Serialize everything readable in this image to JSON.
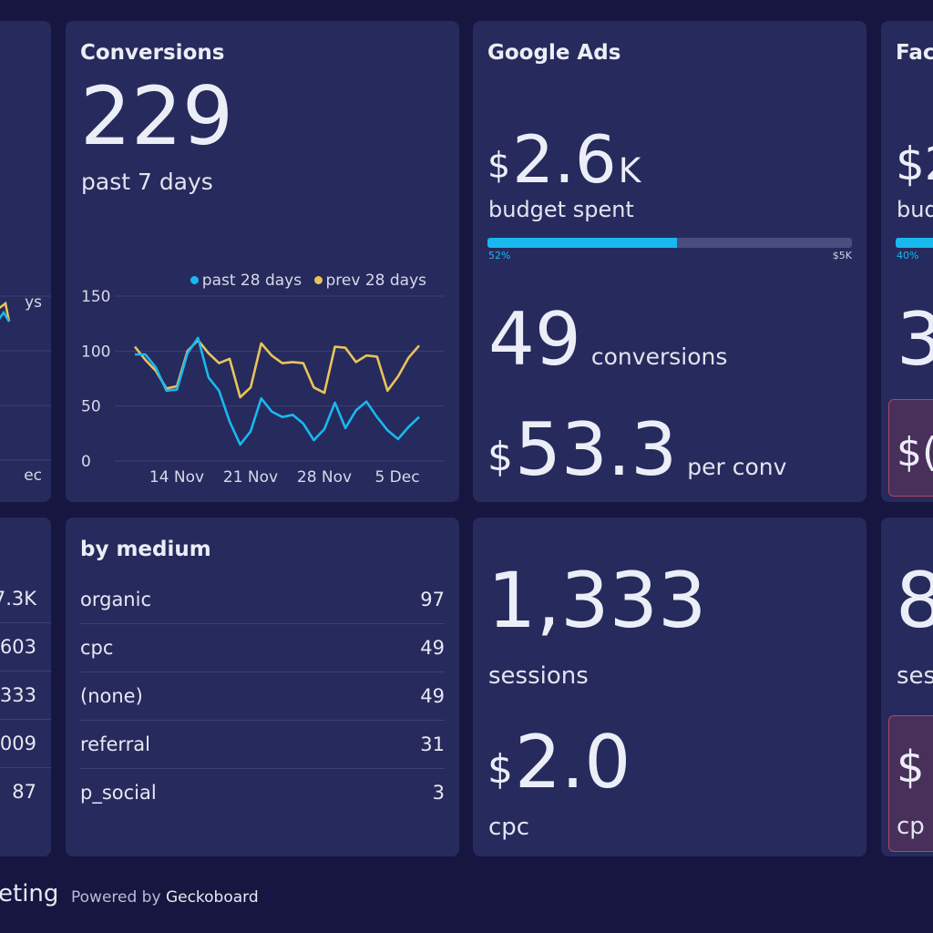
{
  "colors": {
    "background": "#171640",
    "card": "#272a5c",
    "blue": "#19b8f0",
    "yellow": "#e8c45b",
    "text": "#eceef7",
    "warning_border": "#b2475d"
  },
  "left_top": {
    "legend_partial": "ys",
    "tick_label_partial": "ec"
  },
  "conversions": {
    "title": "Conversions",
    "value": "229",
    "caption": "past 7 days",
    "legend": {
      "series_a": "past 28 days",
      "series_b": "prev 28 days"
    },
    "chart_data": {
      "type": "line",
      "title": "",
      "xlabel": "",
      "ylabel": "",
      "ylim": [
        0,
        150
      ],
      "yticks": [
        "150",
        "100",
        "50",
        "0"
      ],
      "x_tick_labels": [
        "14 Nov",
        "21 Nov",
        "28 Nov",
        "5 Dec"
      ],
      "legend_position": "top-right",
      "grid": true,
      "series": [
        {
          "name": "past 28 days",
          "color": "#19b8f0",
          "values": [
            97,
            97,
            85,
            64,
            65,
            98,
            112,
            76,
            64,
            36,
            15,
            27,
            57,
            45,
            40,
            42,
            34,
            19,
            29,
            53,
            30,
            46,
            54,
            40,
            28,
            20,
            31,
            40
          ]
        },
        {
          "name": "prev 28 days",
          "color": "#e8c45b",
          "values": [
            104,
            92,
            82,
            66,
            68,
            100,
            110,
            98,
            89,
            93,
            58,
            67,
            107,
            96,
            89,
            90,
            89,
            67,
            62,
            104,
            103,
            90,
            96,
            95,
            64,
            77,
            94,
            105
          ]
        }
      ]
    }
  },
  "google_ads": {
    "title": "Google Ads",
    "budget_currency": "$",
    "budget_value": "2.6",
    "budget_suffix": "K",
    "budget_caption": "budget spent",
    "progress": {
      "percent": 52,
      "label": "52%",
      "max_label": "$5K"
    },
    "conversions_value": "49",
    "conversions_caption": "conversions",
    "cpc_currency": "$",
    "cpc_value": "53.3",
    "cpc_caption": "per conv"
  },
  "facebook_partial": {
    "title": "Fac",
    "budget_partial": "$2",
    "caption_partial": "bud",
    "progress": {
      "percent": 40,
      "label": "40%"
    },
    "value_partial": "3",
    "warn_partial": "$("
  },
  "left_bottom": {
    "values": [
      "7.3K",
      "603",
      "333",
      "009",
      "87"
    ]
  },
  "by_medium": {
    "title": "by medium",
    "rows": [
      {
        "label": "organic",
        "value": "97"
      },
      {
        "label": "cpc",
        "value": "49"
      },
      {
        "label": "(none)",
        "value": "49"
      },
      {
        "label": "referral",
        "value": "31"
      },
      {
        "label": "p_social",
        "value": "3"
      }
    ]
  },
  "sessions": {
    "value": "1,333",
    "caption": "sessions",
    "cpc_currency": "$",
    "cpc_value": "2.0",
    "cpc_caption": "cpc"
  },
  "right_bottom_partial": {
    "value_partial": "8",
    "caption_partial": "ses",
    "warn_partial": "$",
    "cpc_partial": "cp"
  },
  "footer": {
    "title_partial": "eting",
    "powered_prefix": "Powered by",
    "powered_brand": "Geckoboard"
  }
}
